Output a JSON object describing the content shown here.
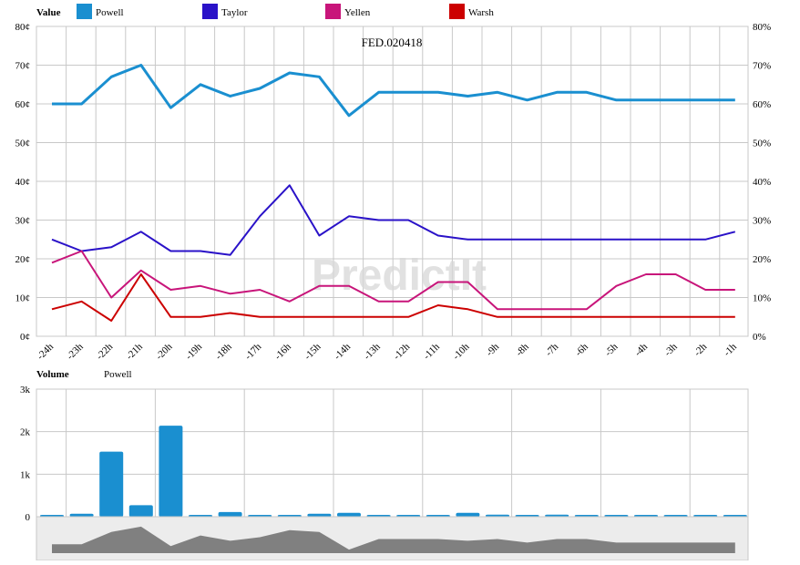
{
  "value_panel": {
    "legend_title": "Value",
    "chart_title": "FED.020418",
    "watermark": "PredictIt",
    "y_left_ticks": [
      "0¢",
      "10¢",
      "20¢",
      "30¢",
      "40¢",
      "50¢",
      "60¢",
      "70¢",
      "80¢"
    ],
    "y_right_ticks": [
      "0%",
      "10%",
      "20%",
      "30%",
      "40%",
      "50%",
      "60%",
      "70%",
      "80%"
    ],
    "x_ticks": [
      "-24h",
      "-23h",
      "-22h",
      "-21h",
      "-20h",
      "-19h",
      "-18h",
      "-17h",
      "-16h",
      "-15h",
      "-14h",
      "-13h",
      "-12h",
      "-11h",
      "-10h",
      "-9h",
      "-8h",
      "-7h",
      "-6h",
      "-5h",
      "-4h",
      "-3h",
      "-2h",
      "-1h"
    ]
  },
  "volume_panel": {
    "legend_title": "Volume",
    "series_label": "Powell",
    "y_ticks": [
      "0",
      "1k",
      "2k",
      "3k"
    ]
  },
  "colors": {
    "Powell": "#1a8fd0",
    "Taylor": "#2a12c8",
    "Yellen": "#c8157a",
    "Warsh": "#cc0000",
    "grid": "#c8c8c8",
    "navigator_fill": "#808080",
    "navigator_bg": "#ececec"
  },
  "chart_data": [
    {
      "type": "line",
      "title": "FED.020418",
      "x": [
        "-24h",
        "-23h",
        "-22h",
        "-21h",
        "-20h",
        "-19h",
        "-18h",
        "-17h",
        "-16h",
        "-15h",
        "-14h",
        "-13h",
        "-12h",
        "-11h",
        "-10h",
        "-9h",
        "-8h",
        "-7h",
        "-6h",
        "-5h",
        "-4h",
        "-3h",
        "-2h",
        "-1h"
      ],
      "ylim": [
        0,
        80
      ],
      "yunit_left": "¢",
      "yunit_right": "%",
      "grid": true,
      "legend": "top",
      "series": [
        {
          "name": "Powell",
          "values": [
            60,
            60,
            67,
            70,
            59,
            65,
            62,
            64,
            68,
            67,
            57,
            63,
            63,
            63,
            62,
            63,
            61,
            63,
            63,
            61,
            61,
            61,
            61,
            61
          ]
        },
        {
          "name": "Taylor",
          "values": [
            25,
            22,
            23,
            27,
            22,
            22,
            21,
            31,
            39,
            26,
            31,
            30,
            30,
            26,
            25,
            25,
            25,
            25,
            25,
            25,
            25,
            25,
            25,
            27
          ]
        },
        {
          "name": "Yellen",
          "values": [
            19,
            22,
            10,
            17,
            12,
            13,
            11,
            12,
            9,
            13,
            13,
            9,
            9,
            14,
            14,
            7,
            7,
            7,
            7,
            13,
            16,
            16,
            12,
            12
          ]
        },
        {
          "name": "Warsh",
          "values": [
            7,
            9,
            4,
            16,
            5,
            5,
            6,
            5,
            5,
            5,
            5,
            5,
            5,
            8,
            7,
            5,
            5,
            5,
            5,
            5,
            5,
            5,
            5,
            5
          ]
        }
      ]
    },
    {
      "type": "bar",
      "title": "",
      "x": [
        "-24h",
        "-23h",
        "-22h",
        "-21h",
        "-20h",
        "-19h",
        "-18h",
        "-17h",
        "-16h",
        "-15h",
        "-14h",
        "-13h",
        "-12h",
        "-11h",
        "-10h",
        "-9h",
        "-8h",
        "-7h",
        "-6h",
        "-5h",
        "-4h",
        "-3h",
        "-2h",
        "-1h"
      ],
      "ylim": [
        0,
        3000
      ],
      "series": [
        {
          "name": "Powell",
          "values": [
            20,
            70,
            1530,
            270,
            2140,
            0,
            110,
            0,
            30,
            70,
            90,
            0,
            0,
            0,
            90,
            50,
            0,
            50,
            0,
            0,
            0,
            0,
            0,
            0
          ]
        }
      ]
    }
  ]
}
